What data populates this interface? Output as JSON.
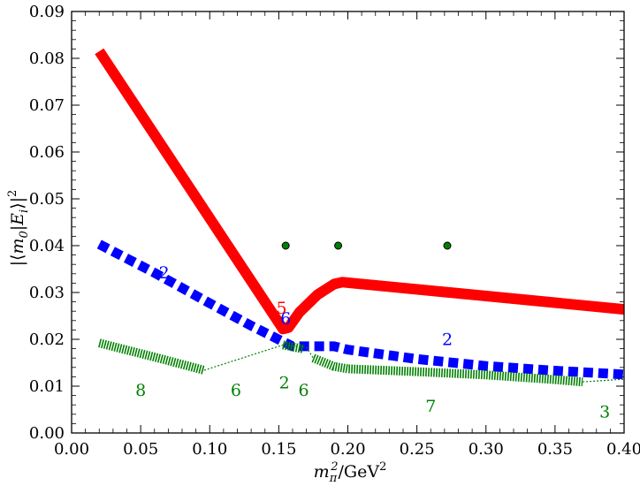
{
  "chart_data": {
    "type": "line",
    "title": "",
    "xlabel": "m_π^2/GeV^2",
    "ylabel": "|⟨m_0|E_i⟩|^2",
    "xlim": [
      0.0,
      0.4
    ],
    "ylim": [
      0.0,
      0.09
    ],
    "x_ticks": [
      0.0,
      0.05,
      0.1,
      0.15,
      0.2,
      0.25,
      0.3,
      0.35,
      0.4
    ],
    "x_tick_labels": [
      "0.00",
      "0.05",
      "0.10",
      "0.15",
      "0.20",
      "0.25",
      "0.30",
      "0.35",
      "0.40"
    ],
    "y_ticks": [
      0.0,
      0.01,
      0.02,
      0.03,
      0.04,
      0.05,
      0.06,
      0.07,
      0.08,
      0.09
    ],
    "y_tick_labels": [
      "0.00",
      "0.01",
      "0.02",
      "0.03",
      "0.04",
      "0.05",
      "0.06",
      "0.07",
      "0.08",
      "0.09"
    ],
    "series": [
      {
        "name": "red",
        "color": "#ff0000",
        "style": "solid",
        "x": [
          0.02,
          0.153,
          0.157,
          0.165,
          0.178,
          0.19,
          0.196,
          0.4
        ],
        "y": [
          0.0815,
          0.0222,
          0.0225,
          0.0258,
          0.0295,
          0.0318,
          0.0322,
          0.0264
        ]
      },
      {
        "name": "blue",
        "color": "#0000ff",
        "style": "dashed",
        "x": [
          0.02,
          0.06,
          0.1,
          0.13,
          0.153,
          0.16,
          0.19,
          0.2,
          0.25,
          0.3,
          0.35,
          0.4
        ],
        "y": [
          0.0403,
          0.0342,
          0.0277,
          0.0229,
          0.0195,
          0.0185,
          0.0185,
          0.0178,
          0.0158,
          0.0143,
          0.0133,
          0.0125
        ]
      },
      {
        "name": "green-a",
        "color": "#008000",
        "style": "hatched",
        "x": [
          0.02,
          0.06,
          0.096
        ],
        "y": [
          0.0192,
          0.0162,
          0.0134
        ]
      },
      {
        "name": "green-b",
        "color": "#008000",
        "style": "hatched",
        "x": [
          0.153,
          0.168
        ],
        "y": [
          0.0188,
          0.0179
        ]
      },
      {
        "name": "green-c",
        "color": "#008000",
        "style": "hatched",
        "x": [
          0.175,
          0.19,
          0.2,
          0.25,
          0.3,
          0.35,
          0.37
        ],
        "y": [
          0.016,
          0.0142,
          0.0137,
          0.0131,
          0.0124,
          0.0114,
          0.0109
        ]
      },
      {
        "name": "green-dotted",
        "color": "#008000",
        "style": "dotted",
        "x": [
          0.096,
          0.153,
          0.17,
          0.175
        ],
        "y": [
          0.0134,
          0.0188,
          0.0183,
          0.016
        ]
      },
      {
        "name": "green-dotted-tail",
        "color": "#008000",
        "style": "dotted",
        "x": [
          0.37,
          0.4
        ],
        "y": [
          0.0109,
          0.0115
        ]
      }
    ],
    "points": [
      {
        "x": 0.155,
        "y": 0.04,
        "color": "#008000"
      },
      {
        "x": 0.193,
        "y": 0.04,
        "color": "#008000"
      },
      {
        "x": 0.272,
        "y": 0.04,
        "color": "#008000"
      }
    ],
    "annotations": [
      {
        "text": "2",
        "x": 0.067,
        "y": 0.033,
        "color": "#0000ff"
      },
      {
        "text": "5",
        "x": 0.152,
        "y": 0.0255,
        "color": "#ff0000"
      },
      {
        "text": "6",
        "x": 0.155,
        "y": 0.0232,
        "color": "#0000ff"
      },
      {
        "text": "2",
        "x": 0.272,
        "y": 0.0188,
        "color": "#0000ff"
      },
      {
        "text": "8",
        "x": 0.05,
        "y": 0.0079,
        "color": "#008000"
      },
      {
        "text": "6",
        "x": 0.119,
        "y": 0.0079,
        "color": "#008000"
      },
      {
        "text": "2",
        "x": 0.154,
        "y": 0.0095,
        "color": "#008000"
      },
      {
        "text": "6",
        "x": 0.168,
        "y": 0.0079,
        "color": "#008000"
      },
      {
        "text": "7",
        "x": 0.26,
        "y": 0.0045,
        "color": "#008000"
      },
      {
        "text": "3",
        "x": 0.386,
        "y": 0.0033,
        "color": "#008000"
      }
    ]
  }
}
